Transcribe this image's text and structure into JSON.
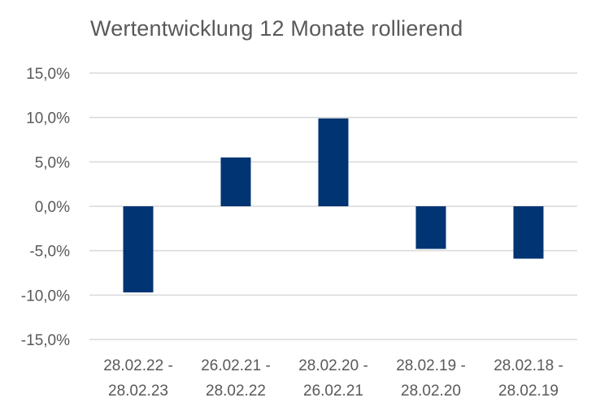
{
  "chart_data": {
    "type": "bar",
    "title": "Wertentwicklung 12 Monate rollierend",
    "xlabel": "",
    "ylabel": "",
    "categories": [
      [
        "28.02.22 -",
        "28.02.23"
      ],
      [
        "26.02.21 -",
        "28.02.22"
      ],
      [
        "28.02.20 -",
        "26.02.21"
      ],
      [
        "28.02.19 -",
        "28.02.20"
      ],
      [
        "28.02.18 -",
        "28.02.19"
      ]
    ],
    "values": [
      -9.7,
      5.5,
      9.9,
      -4.8,
      -5.9
    ],
    "ylim": [
      -15,
      15
    ],
    "yticks": [
      15,
      10,
      5,
      0,
      -5,
      -10,
      -15
    ],
    "ytick_labels": [
      "15,0%",
      "10,0%",
      "5,0%",
      "0,0%",
      "-5,0%",
      "-10,0%",
      "-15,0%"
    ],
    "grid": true,
    "legend": "none",
    "colors": {
      "bar": "#003473",
      "grid": "#d9d9d9",
      "text": "#595959"
    }
  }
}
